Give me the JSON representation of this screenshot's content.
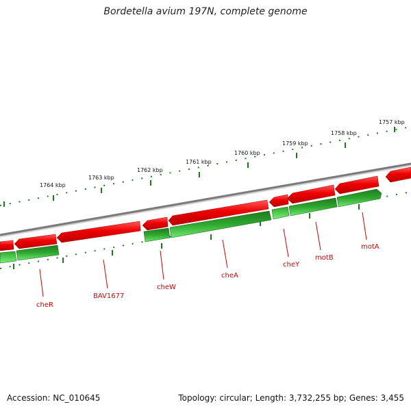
{
  "title": "Bordetella avium 197N, complete genome",
  "footer": {
    "accession": "Accession: NC_010645",
    "topology": "Topology: circular; Length: 3,732,255 bp; Genes: 3,455"
  },
  "colors": {
    "forward_gene": "#ee0000",
    "reverse_gene": "#22aa22",
    "reverse_gene_dark": "#1f7a1f",
    "backbone": "#888888",
    "tick": "#1a7a1a",
    "label": "#cc0000"
  },
  "kbp_ticks": [
    "1757 kbp",
    "1758 kbp",
    "1759 kbp",
    "1760 kbp",
    "1761 kbp",
    "1762 kbp",
    "1763 kbp",
    "1764 kbp"
  ],
  "gene_labels": [
    "motA",
    "motB",
    "cheY",
    "cheA",
    "cheW",
    "BAV1677",
    "cheR"
  ]
}
